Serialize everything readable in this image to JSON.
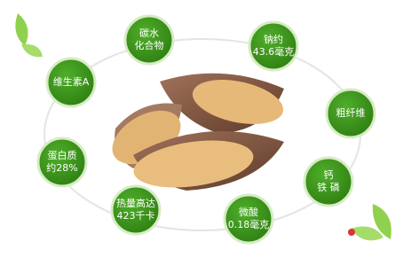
{
  "nodes": [
    {
      "lines": [
        "碳水",
        "化合物"
      ]
    },
    {
      "lines": [
        "钠约",
        "43.6毫克"
      ]
    },
    {
      "lines": [
        "维生素A"
      ]
    },
    {
      "lines": [
        "粗纤维"
      ]
    },
    {
      "lines": [
        "蛋白质",
        "约28%"
      ]
    },
    {
      "lines": [
        "钙",
        "铁 磷"
      ]
    },
    {
      "lines": [
        "热量高达",
        "423千卡"
      ]
    },
    {
      "lines": [
        "微酸",
        "0.18毫克"
      ]
    }
  ]
}
